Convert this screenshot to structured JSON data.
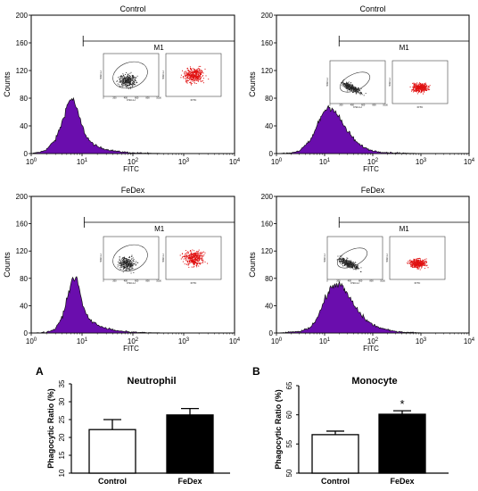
{
  "histograms": [
    {
      "title": "Control",
      "gate": "M1",
      "ylabel": "Counts",
      "xlabel": "FITC",
      "dots_color": "#222222"
    },
    {
      "title": "Control",
      "gate": "M1",
      "ylabel": "Counts",
      "xlabel": "FITC",
      "dots_color": "#222222"
    },
    {
      "title": "FeDex",
      "gate": "M1",
      "ylabel": "Counts",
      "xlabel": "FITC",
      "dots_color": "#222222"
    },
    {
      "title": "FeDex",
      "gate": "M1",
      "ylabel": "Counts",
      "xlabel": "FITC",
      "dots_color": "#222222"
    }
  ],
  "histogram_yticks": [
    "0",
    "40",
    "80",
    "120",
    "160",
    "200"
  ],
  "histogram_xticks": [
    {
      "base": "10",
      "exp": "0"
    },
    {
      "base": "10",
      "exp": "1"
    },
    {
      "base": "10",
      "exp": "2"
    },
    {
      "base": "10",
      "exp": "3"
    },
    {
      "base": "10",
      "exp": "4"
    }
  ],
  "inset_labels": {
    "fsc": "FSC-H",
    "ssc": "SSC-H",
    "fitc": "FITC"
  },
  "inset_ticks": [
    "0",
    "200",
    "400",
    "600",
    "800",
    "1000"
  ],
  "bar_panels": [
    {
      "letter": "A",
      "title": "Neutrophil",
      "ylabel": "Phagocytic Ratio (%)",
      "yticks": [
        "10",
        "15",
        "20",
        "25",
        "30",
        "35"
      ],
      "sig": ""
    },
    {
      "letter": "B",
      "title": "Monocyte",
      "ylabel": "Phagocytic Ratio (%)",
      "yticks": [
        "50",
        "55",
        "60",
        "65"
      ],
      "sig": "*"
    }
  ],
  "colors": {
    "histogram_fill": "#6a0dad",
    "dot_red": "#e01010",
    "bar_fedex": "#000000",
    "bar_control": "#ffffff"
  },
  "chart_data": [
    {
      "type": "area",
      "title": "Control",
      "xlabel": "FITC",
      "ylabel": "Counts",
      "xscale": "log",
      "xlim": [
        1,
        10000
      ],
      "ylim": [
        0,
        200
      ],
      "gate": {
        "label": "M1",
        "from": 10.5,
        "to": 10000
      },
      "series": [
        {
          "x": [
            1,
            1.5,
            2,
            3,
            4,
            5,
            6,
            7,
            8,
            10,
            12,
            15,
            20,
            30,
            50,
            100,
            200,
            500,
            10000
          ],
          "y": [
            0,
            2,
            6,
            20,
            44,
            68,
            80,
            76,
            62,
            40,
            26,
            16,
            10,
            6,
            3,
            1,
            0.5,
            0.2,
            0
          ]
        }
      ]
    },
    {
      "type": "area",
      "title": "Control",
      "xlabel": "FITC",
      "ylabel": "Counts",
      "xscale": "log",
      "xlim": [
        1,
        10000
      ],
      "ylim": [
        0,
        200
      ],
      "gate": {
        "label": "M1",
        "from": 20,
        "to": 10000
      },
      "series": [
        {
          "x": [
            1,
            2,
            3,
            5,
            7,
            9,
            12,
            15,
            20,
            30,
            50,
            80,
            120,
            200,
            400,
            1000,
            10000
          ],
          "y": [
            0,
            1,
            4,
            18,
            40,
            58,
            68,
            65,
            52,
            32,
            14,
            6,
            3,
            1.5,
            0.6,
            0.2,
            0
          ]
        }
      ]
    },
    {
      "type": "area",
      "title": "FeDex",
      "xlabel": "FITC",
      "ylabel": "Counts",
      "xscale": "log",
      "xlim": [
        1,
        10000
      ],
      "ylim": [
        0,
        200
      ],
      "gate": {
        "label": "M1",
        "from": 11,
        "to": 10000
      },
      "series": [
        {
          "x": [
            1,
            2,
            3,
            4,
            5,
            6,
            7,
            8,
            9,
            10,
            12,
            15,
            20,
            30,
            50,
            100,
            200,
            500,
            10000
          ],
          "y": [
            0,
            1,
            6,
            22,
            48,
            72,
            82,
            78,
            62,
            44,
            28,
            18,
            12,
            7,
            3,
            1.2,
            0.5,
            0.2,
            0
          ]
        }
      ]
    },
    {
      "type": "area",
      "title": "FeDex",
      "xlabel": "FITC",
      "ylabel": "Counts",
      "xscale": "log",
      "xlim": [
        1,
        10000
      ],
      "ylim": [
        0,
        200
      ],
      "gate": {
        "label": "M1",
        "from": 20,
        "to": 10000
      },
      "series": [
        {
          "x": [
            1,
            3,
            5,
            7,
            10,
            13,
            17,
            22,
            30,
            45,
            70,
            100,
            150,
            250,
            500,
            1000,
            10000
          ],
          "y": [
            0,
            2,
            8,
            22,
            48,
            64,
            72,
            70,
            56,
            36,
            20,
            12,
            7,
            3,
            1,
            0.3,
            0
          ]
        }
      ]
    },
    {
      "type": "bar",
      "title": "Neutrophil",
      "ylabel": "Phagocytic Ratio (%)",
      "ylim": [
        10,
        35
      ],
      "categories": [
        "Control",
        "FeDex"
      ],
      "values": [
        22.2,
        26.3
      ],
      "errors": [
        2.8,
        1.8
      ]
    },
    {
      "type": "bar",
      "title": "Monocyte",
      "ylabel": "Phagocytic Ratio (%)",
      "ylim": [
        50,
        65
      ],
      "categories": [
        "Control",
        "FeDex"
      ],
      "values": [
        56.6,
        60.1
      ],
      "errors": [
        0.6,
        0.6
      ]
    }
  ]
}
